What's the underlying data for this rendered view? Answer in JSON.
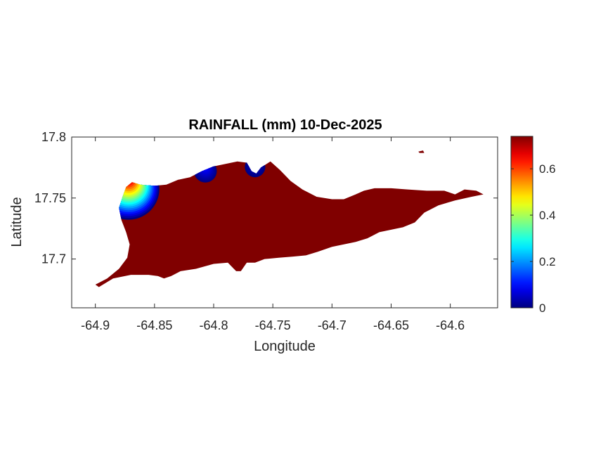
{
  "chart_data": {
    "type": "heatmap",
    "title": "RAINFALL (mm) 10-Dec-2025",
    "xlabel": "Longitude",
    "ylabel": "Latitude",
    "xlim": [
      -64.92,
      -64.56
    ],
    "ylim": [
      17.66,
      17.8
    ],
    "x_ticks": [
      -64.9,
      -64.85,
      -64.8,
      -64.75,
      -64.7,
      -64.65,
      -64.6
    ],
    "x_tick_labels": [
      "-64.9",
      "-64.85",
      "-64.8",
      "-64.75",
      "-64.7",
      "-64.65",
      "-64.6"
    ],
    "y_ticks": [
      17.7,
      17.75,
      17.8
    ],
    "y_tick_labels": [
      "17.7",
      "17.75",
      "17.8"
    ],
    "grid": false,
    "colormap": "jet",
    "background_value": 0,
    "background_color": "#800000",
    "colorbar": {
      "location": "right",
      "range": [
        0,
        0.74
      ],
      "ticks": [
        0,
        0.2,
        0.4,
        0.6
      ],
      "tick_labels": [
        "0",
        "0.2",
        "0.4",
        "0.6"
      ]
    },
    "hotspots": [
      {
        "lon": -64.872,
        "lat": 17.766,
        "value": 0.74
      },
      {
        "lon": -64.807,
        "lat": 17.775,
        "value": 0.1
      },
      {
        "lon": -64.765,
        "lat": 17.778,
        "value": 0.06
      }
    ],
    "region_outline": [
      [
        -64.9,
        17.679
      ],
      [
        -64.89,
        17.684
      ],
      [
        -64.88,
        17.692
      ],
      [
        -64.873,
        17.701
      ],
      [
        -64.871,
        17.712
      ],
      [
        -64.874,
        17.722
      ],
      [
        -64.878,
        17.732
      ],
      [
        -64.88,
        17.742
      ],
      [
        -64.877,
        17.751
      ],
      [
        -64.874,
        17.759
      ],
      [
        -64.869,
        17.763
      ],
      [
        -64.862,
        17.761
      ],
      [
        -64.85,
        17.76
      ],
      [
        -64.84,
        17.761
      ],
      [
        -64.83,
        17.765
      ],
      [
        -64.82,
        17.767
      ],
      [
        -64.81,
        17.772
      ],
      [
        -64.8,
        17.776
      ],
      [
        -64.79,
        17.778
      ],
      [
        -64.78,
        17.78
      ],
      [
        -64.772,
        17.779
      ],
      [
        -64.768,
        17.772
      ],
      [
        -64.764,
        17.77
      ],
      [
        -64.76,
        17.775
      ],
      [
        -64.752,
        17.78
      ],
      [
        -64.744,
        17.773
      ],
      [
        -64.735,
        17.764
      ],
      [
        -64.725,
        17.757
      ],
      [
        -64.713,
        17.751
      ],
      [
        -64.7,
        17.749
      ],
      [
        -64.69,
        17.749
      ],
      [
        -64.68,
        17.753
      ],
      [
        -64.673,
        17.756
      ],
      [
        -64.664,
        17.758
      ],
      [
        -64.65,
        17.758
      ],
      [
        -64.636,
        17.757
      ],
      [
        -64.62,
        17.756
      ],
      [
        -64.605,
        17.756
      ],
      [
        -64.596,
        17.753
      ],
      [
        -64.588,
        17.757
      ],
      [
        -64.578,
        17.756
      ],
      [
        -64.572,
        17.753
      ],
      [
        -64.582,
        17.751
      ],
      [
        -64.596,
        17.748
      ],
      [
        -64.61,
        17.744
      ],
      [
        -64.622,
        17.738
      ],
      [
        -64.63,
        17.73
      ],
      [
        -64.64,
        17.726
      ],
      [
        -64.65,
        17.724
      ],
      [
        -64.66,
        17.722
      ],
      [
        -64.67,
        17.717
      ],
      [
        -64.68,
        17.714
      ],
      [
        -64.69,
        17.712
      ],
      [
        -64.7,
        17.71
      ],
      [
        -64.712,
        17.706
      ],
      [
        -64.722,
        17.703
      ],
      [
        -64.733,
        17.702
      ],
      [
        -64.745,
        17.701
      ],
      [
        -64.757,
        17.7
      ],
      [
        -64.765,
        17.697
      ],
      [
        -64.772,
        17.697
      ],
      [
        -64.777,
        17.69
      ],
      [
        -64.781,
        17.69
      ],
      [
        -64.788,
        17.697
      ],
      [
        -64.8,
        17.696
      ],
      [
        -64.815,
        17.692
      ],
      [
        -64.828,
        17.69
      ],
      [
        -64.836,
        17.686
      ],
      [
        -64.842,
        17.684
      ],
      [
        -64.847,
        17.686
      ],
      [
        -64.855,
        17.687
      ],
      [
        -64.87,
        17.687
      ],
      [
        -64.885,
        17.684
      ],
      [
        -64.897,
        17.677
      ]
    ],
    "islet_outline": [
      [
        -64.627,
        17.788
      ],
      [
        -64.623,
        17.789
      ],
      [
        -64.622,
        17.787
      ],
      [
        -64.626,
        17.787
      ]
    ]
  }
}
